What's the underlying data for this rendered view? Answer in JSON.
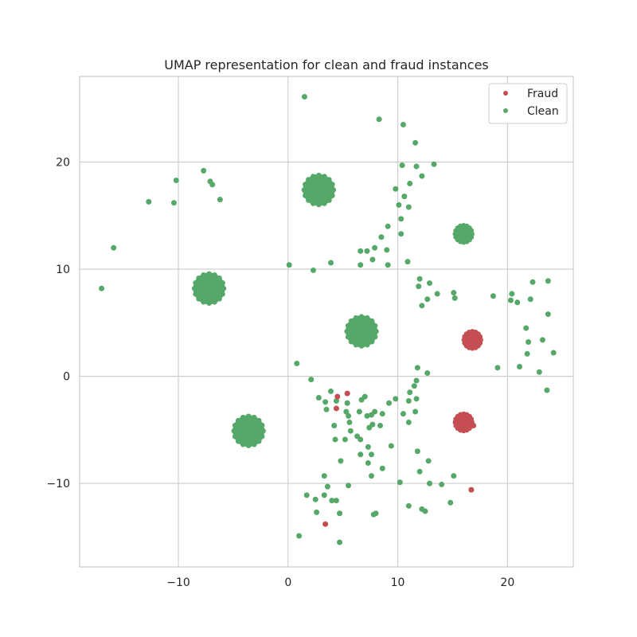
{
  "chart_data": {
    "type": "scatter",
    "title": "UMAP representation for clean and fraud instances",
    "xlabel": "",
    "ylabel": "",
    "xlim": [
      -19,
      26
    ],
    "ylim": [
      -17.8,
      28
    ],
    "x_ticks": [
      -10,
      0,
      10,
      20
    ],
    "y_ticks": [
      -10,
      0,
      10,
      20
    ],
    "x_tick_labels": [
      "−10",
      "0",
      "10",
      "20"
    ],
    "y_tick_labels": [
      "−10",
      "0",
      "10",
      "20"
    ],
    "grid": true,
    "legend_position": "top-right",
    "series": [
      {
        "name": "Fraud",
        "color": "#c44e52",
        "clusters": [
          {
            "x": 16.8,
            "y": 3.4,
            "size": "medium"
          },
          {
            "x": 16.0,
            "y": -4.3,
            "size": "medium"
          }
        ],
        "points": [
          [
            5.4,
            -1.6
          ],
          [
            4.5,
            -1.9
          ],
          [
            4.4,
            -3.0
          ],
          [
            3.4,
            -13.8
          ],
          [
            16.7,
            -10.6
          ],
          [
            16.9,
            -4.6
          ],
          [
            15.3,
            -4.2
          ]
        ]
      },
      {
        "name": "Clean",
        "color": "#55a868",
        "clusters": [
          {
            "x": 2.8,
            "y": 17.4,
            "size": "large"
          },
          {
            "x": -7.2,
            "y": 8.2,
            "size": "large"
          },
          {
            "x": 6.7,
            "y": 4.2,
            "size": "large"
          },
          {
            "x": -3.6,
            "y": -5.1,
            "size": "large"
          },
          {
            "x": 16.0,
            "y": 13.3,
            "size": "medium"
          }
        ],
        "points": [
          [
            1.5,
            26.1
          ],
          [
            8.3,
            24.0
          ],
          [
            10.5,
            23.5
          ],
          [
            11.6,
            21.8
          ],
          [
            -7.7,
            19.2
          ],
          [
            -10.2,
            18.3
          ],
          [
            -7.1,
            18.2
          ],
          [
            -6.9,
            17.9
          ],
          [
            -12.7,
            16.3
          ],
          [
            -10.4,
            16.2
          ],
          [
            -6.2,
            16.5
          ],
          [
            -15.9,
            12.0
          ],
          [
            -17.0,
            8.2
          ],
          [
            10.4,
            19.7
          ],
          [
            11.7,
            19.6
          ],
          [
            13.3,
            19.8
          ],
          [
            12.2,
            18.7
          ],
          [
            11.1,
            18.0
          ],
          [
            9.8,
            17.5
          ],
          [
            10.6,
            16.8
          ],
          [
            10.1,
            16.0
          ],
          [
            11.0,
            15.8
          ],
          [
            10.3,
            14.7
          ],
          [
            9.1,
            14.0
          ],
          [
            10.3,
            13.3
          ],
          [
            8.5,
            13.0
          ],
          [
            7.9,
            12.0
          ],
          [
            6.6,
            11.7
          ],
          [
            7.2,
            11.7
          ],
          [
            9.0,
            11.8
          ],
          [
            7.7,
            10.9
          ],
          [
            3.9,
            10.6
          ],
          [
            6.6,
            10.4
          ],
          [
            9.1,
            10.4
          ],
          [
            10.9,
            10.7
          ],
          [
            0.1,
            10.4
          ],
          [
            2.3,
            9.9
          ],
          [
            12.0,
            9.1
          ],
          [
            11.9,
            8.4
          ],
          [
            12.9,
            8.7
          ],
          [
            13.6,
            7.7
          ],
          [
            12.7,
            7.2
          ],
          [
            15.1,
            7.8
          ],
          [
            15.2,
            7.3
          ],
          [
            12.2,
            6.6
          ],
          [
            18.7,
            7.5
          ],
          [
            20.4,
            7.7
          ],
          [
            20.9,
            6.9
          ],
          [
            20.3,
            7.1
          ],
          [
            22.1,
            7.2
          ],
          [
            22.3,
            8.8
          ],
          [
            23.7,
            8.9
          ],
          [
            23.7,
            5.8
          ],
          [
            21.7,
            4.5
          ],
          [
            21.9,
            3.2
          ],
          [
            23.2,
            3.4
          ],
          [
            21.8,
            2.1
          ],
          [
            24.2,
            2.2
          ],
          [
            19.1,
            0.8
          ],
          [
            21.1,
            0.9
          ],
          [
            22.9,
            0.4
          ],
          [
            23.6,
            -1.3
          ],
          [
            0.8,
            1.2
          ],
          [
            2.1,
            -0.3
          ],
          [
            11.8,
            0.8
          ],
          [
            12.7,
            0.3
          ],
          [
            11.7,
            -0.4
          ],
          [
            11.5,
            -0.9
          ],
          [
            11.1,
            -1.5
          ],
          [
            11.0,
            -2.3
          ],
          [
            10.5,
            -3.5
          ],
          [
            11.6,
            -3.3
          ],
          [
            11.7,
            -2.1
          ],
          [
            11.0,
            -4.3
          ],
          [
            9.8,
            -2.1
          ],
          [
            2.8,
            -2.0
          ],
          [
            3.9,
            -1.4
          ],
          [
            3.4,
            -2.4
          ],
          [
            3.5,
            -3.1
          ],
          [
            4.4,
            -2.3
          ],
          [
            5.4,
            -2.5
          ],
          [
            5.3,
            -3.3
          ],
          [
            5.5,
            -3.7
          ],
          [
            4.2,
            -4.6
          ],
          [
            5.6,
            -4.3
          ],
          [
            6.5,
            -3.3
          ],
          [
            7.0,
            -1.9
          ],
          [
            6.7,
            -2.2
          ],
          [
            7.2,
            -3.7
          ],
          [
            7.6,
            -3.6
          ],
          [
            7.9,
            -3.3
          ],
          [
            8.6,
            -3.5
          ],
          [
            9.2,
            -2.5
          ],
          [
            7.7,
            -4.5
          ],
          [
            8.4,
            -4.6
          ],
          [
            7.4,
            -4.8
          ],
          [
            5.7,
            -5.1
          ],
          [
            6.3,
            -5.6
          ],
          [
            4.3,
            -5.9
          ],
          [
            5.2,
            -5.9
          ],
          [
            6.6,
            -5.9
          ],
          [
            7.3,
            -6.6
          ],
          [
            6.6,
            -7.3
          ],
          [
            7.6,
            -7.3
          ],
          [
            9.4,
            -6.5
          ],
          [
            4.8,
            -7.9
          ],
          [
            7.3,
            -8.1
          ],
          [
            8.6,
            -8.6
          ],
          [
            7.6,
            -9.3
          ],
          [
            3.3,
            -9.3
          ],
          [
            5.5,
            -10.2
          ],
          [
            3.6,
            -10.3
          ],
          [
            10.2,
            -9.9
          ],
          [
            11.8,
            -7.0
          ],
          [
            12.0,
            -8.9
          ],
          [
            12.8,
            -7.9
          ],
          [
            12.9,
            -10.0
          ],
          [
            14.0,
            -10.1
          ],
          [
            15.1,
            -9.3
          ],
          [
            14.8,
            -11.8
          ],
          [
            1.7,
            -11.1
          ],
          [
            2.5,
            -11.5
          ],
          [
            3.3,
            -11.1
          ],
          [
            4.0,
            -11.6
          ],
          [
            4.4,
            -11.6
          ],
          [
            11.0,
            -12.1
          ],
          [
            12.2,
            -12.4
          ],
          [
            12.5,
            -12.6
          ],
          [
            2.6,
            -12.7
          ],
          [
            4.7,
            -12.8
          ],
          [
            7.8,
            -12.9
          ],
          [
            8.0,
            -12.8
          ],
          [
            1.0,
            -14.9
          ],
          [
            4.7,
            -15.5
          ]
        ]
      }
    ]
  }
}
